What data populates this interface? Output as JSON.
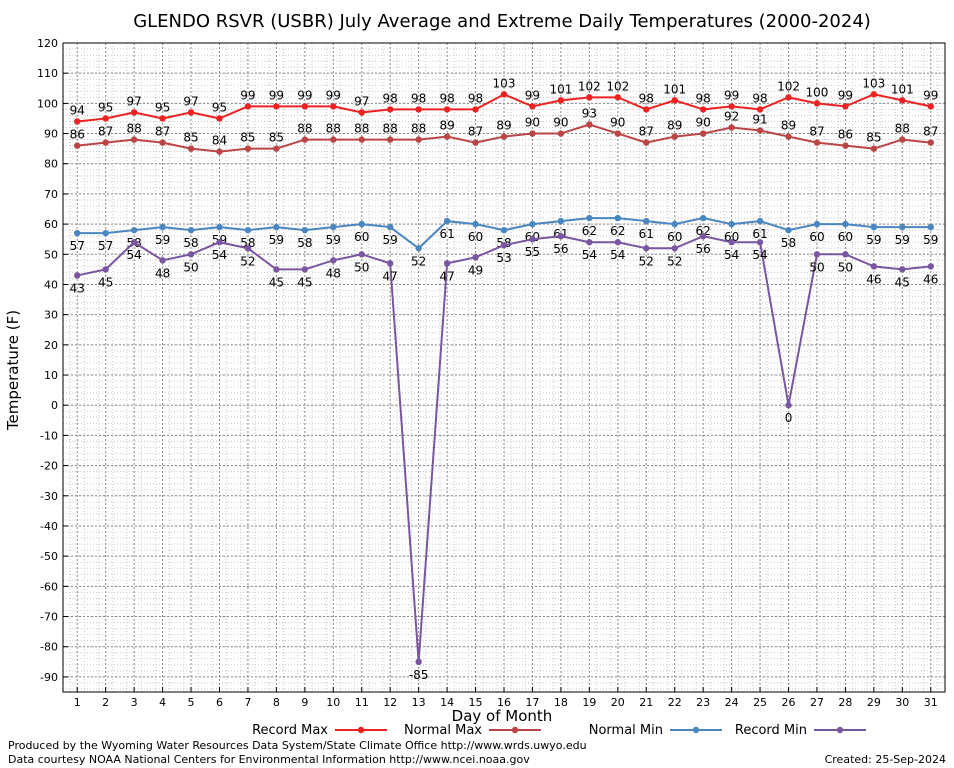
{
  "chart_data": {
    "type": "line",
    "title": "GLENDO RSVR (USBR) July Average and Extreme Daily Temperatures (2000-2024)",
    "xlabel": "Day of Month",
    "ylabel": "Temperature (F)",
    "ylim": [
      -95,
      120
    ],
    "xlim": [
      0.5,
      31.5
    ],
    "yticks": [
      120,
      110,
      100,
      90,
      80,
      70,
      60,
      50,
      40,
      30,
      20,
      10,
      0,
      -10,
      -20,
      -30,
      -40,
      -50,
      -60,
      -70,
      -80,
      -90
    ],
    "x": [
      1,
      2,
      3,
      4,
      5,
      6,
      7,
      8,
      9,
      10,
      11,
      12,
      13,
      14,
      15,
      16,
      17,
      18,
      19,
      20,
      21,
      22,
      23,
      24,
      25,
      26,
      27,
      28,
      29,
      30,
      31
    ],
    "grid": true,
    "legend_position": "bottom",
    "series": [
      {
        "name": "Record Max",
        "color": "#ee2222",
        "values": [
          94,
          95,
          97,
          95,
          97,
          95,
          99,
          99,
          99,
          99,
          97,
          98,
          98,
          98,
          98,
          103,
          99,
          101,
          102,
          102,
          98,
          101,
          98,
          99,
          98,
          102,
          100,
          99,
          103,
          101,
          99
        ],
        "labels": [
          "94",
          "95",
          "97",
          "95",
          "97",
          "95",
          "99",
          "99",
          "99",
          "99",
          "97",
          "98",
          "98",
          "98",
          "98",
          "103",
          "99",
          "101",
          "102",
          "102",
          "98",
          "101",
          "98",
          "99",
          "98",
          "102",
          "100",
          "99",
          "103",
          "101",
          "99"
        ]
      },
      {
        "name": "Normal Max",
        "color": "#bb4444",
        "values": [
          86,
          87,
          88,
          87,
          85,
          84,
          85,
          85,
          88,
          88,
          88,
          88,
          88,
          89,
          87,
          89,
          90,
          90,
          93,
          90,
          87,
          89,
          90,
          92,
          91,
          89,
          87,
          86,
          85,
          88,
          87
        ],
        "labels": [
          "86",
          "87",
          "88",
          "87",
          "85",
          "84",
          "85",
          "85",
          "88",
          "88",
          "88",
          "88",
          "88",
          "89",
          "87",
          "89",
          "90",
          "90",
          "93",
          "90",
          "87",
          "89",
          "90",
          "92",
          "91",
          "89",
          "87",
          "86",
          "85",
          "88",
          "87"
        ]
      },
      {
        "name": "Normal Min",
        "color": "#4a86c0",
        "values": [
          57,
          57,
          58,
          59,
          58,
          59,
          58,
          59,
          58,
          59,
          60,
          59,
          52,
          61,
          60,
          58,
          60,
          61,
          62,
          62,
          61,
          60,
          62,
          60,
          61,
          58,
          60,
          60,
          59,
          59,
          59
        ],
        "labels": [
          "57",
          "57",
          "58",
          "59",
          "58",
          "59",
          "58",
          "59",
          "58",
          "59",
          "60",
          "59",
          "52",
          "61",
          "60",
          "58",
          "60",
          "61",
          "62",
          "62",
          "61",
          "60",
          "62",
          "60",
          "61",
          "58",
          "60",
          "60",
          "59",
          "59",
          "59"
        ]
      },
      {
        "name": "Record Min",
        "color": "#7a55a0",
        "values": [
          43,
          45,
          54,
          48,
          50,
          54,
          52,
          45,
          45,
          48,
          50,
          47,
          -85,
          47,
          49,
          53,
          55,
          56,
          54,
          54,
          52,
          52,
          56,
          54,
          54,
          0,
          50,
          50,
          46,
          45,
          46
        ],
        "labels": [
          "43",
          "45",
          "54",
          "48",
          "50",
          "54",
          "52",
          "45",
          "45",
          "48",
          "50",
          "47",
          "-85",
          "47",
          "49",
          "53",
          "55",
          "56",
          "54",
          "54",
          "52",
          "52",
          "56",
          "54",
          "54",
          "0",
          "50",
          "50",
          "46",
          "45",
          "46"
        ]
      }
    ]
  },
  "footer": {
    "produced_by": "Produced by the Wyoming Water Resources Data System/State Climate Office http://www.wrds.uwyo.edu",
    "courtesy": "Data courtesy NOAA National Centers for Environmental Information http://www.ncei.noaa.gov",
    "created": "Created:  25-Sep-2024"
  }
}
